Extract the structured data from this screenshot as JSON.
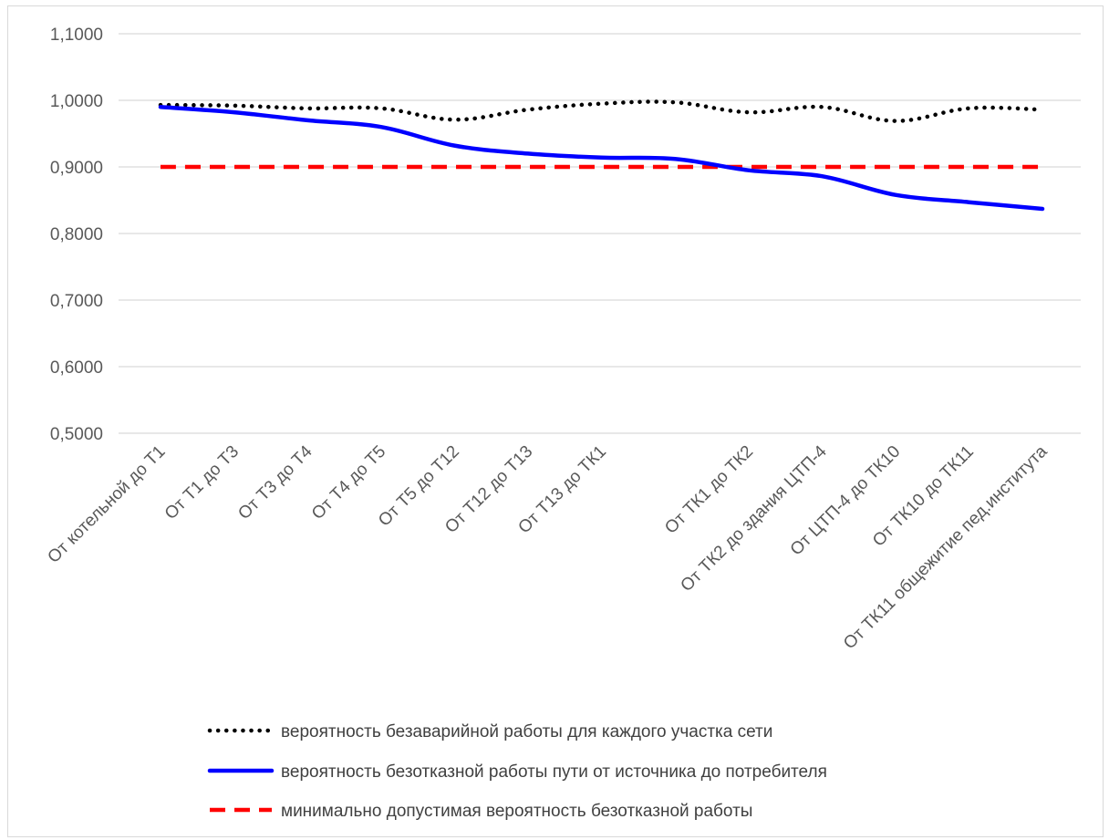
{
  "chart_data": {
    "type": "line",
    "categories": [
      "От котельной до Т1",
      "От Т1 до Т3",
      "От Т3 до Т4",
      "От Т4 до Т5",
      "От Т5 до Т12",
      "От Т12 до Т13",
      "От Т13 до ТК1",
      "",
      "От ТК1 до ТК2",
      "От ТК2 до здания ЦТП-4",
      "От ЦТП-4 до ТК10",
      "От ТК10 до ТК11",
      "От ТК11 общежитие пед.института"
    ],
    "ylim": [
      0.5,
      1.1
    ],
    "yticks": [
      "0,5000",
      "0,6000",
      "0,7000",
      "0,8000",
      "0,9000",
      "1,0000",
      "1,1000"
    ],
    "ytick_values": [
      0.5,
      0.6,
      0.7,
      0.8,
      0.9,
      1.0,
      1.1
    ],
    "grid": true,
    "legend_position": "bottom",
    "series": [
      {
        "name": "вероятность безаварийной работы для каждого участка сети",
        "color": "#000000",
        "style": "dotted",
        "values": [
          0.993,
          0.992,
          0.988,
          0.988,
          0.971,
          0.986,
          0.995,
          0.997,
          0.982,
          0.99,
          0.969,
          0.988,
          0.986
        ]
      },
      {
        "name": "вероятность безотказной работы пути от источника до потребителя",
        "color": "#0000ff",
        "style": "solid",
        "values": [
          0.99,
          0.982,
          0.97,
          0.96,
          0.932,
          0.92,
          0.914,
          0.912,
          0.895,
          0.886,
          0.858,
          0.847,
          0.837
        ]
      },
      {
        "name": "минимально допустимая вероятность безотказной работы",
        "color": "#ff0000",
        "style": "dashed",
        "values": [
          0.9,
          0.9,
          0.9,
          0.9,
          0.9,
          0.9,
          0.9,
          0.9,
          0.9,
          0.9,
          0.9,
          0.9,
          0.9
        ]
      }
    ]
  }
}
